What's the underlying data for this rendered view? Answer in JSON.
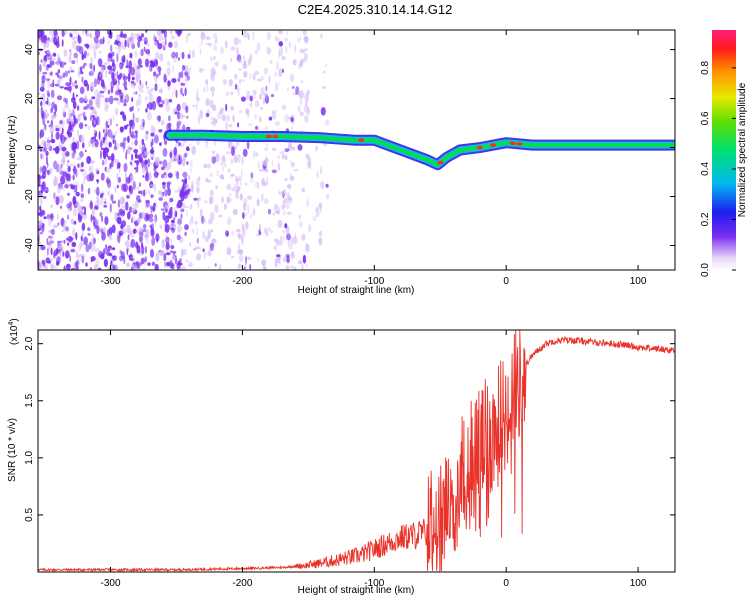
{
  "title": "C2E4.2025.310.14.14.G12",
  "colors": {
    "snr_line": "#e8322a",
    "track_core": "#00e040",
    "track_edge": "#2b21e0",
    "noise": "#7a2ff0",
    "noise_light": "#d2b8f5"
  },
  "chart_data": [
    {
      "type": "heatmap",
      "name": "spectrogram",
      "xlabel": "Height of straight line (km)",
      "ylabel": "Frequency (Hz)",
      "xlim": [
        -355,
        128
      ],
      "ylim": [
        -50,
        48
      ],
      "xticks": [
        -300,
        -200,
        -100,
        0,
        100
      ],
      "yticks": [
        -40,
        -20,
        0,
        20,
        40
      ],
      "xticklabels": [
        "-300",
        "-200",
        "-100",
        "0",
        "100"
      ],
      "yticklabels": [
        "-40",
        "-20",
        "0",
        "20",
        "40"
      ],
      "track": [
        {
          "x": -255,
          "y": 5
        },
        {
          "x": -230,
          "y": 5
        },
        {
          "x": -200,
          "y": 4.5
        },
        {
          "x": -170,
          "y": 4.5
        },
        {
          "x": -140,
          "y": 4
        },
        {
          "x": -115,
          "y": 3
        },
        {
          "x": -100,
          "y": 3
        },
        {
          "x": -90,
          "y": 1
        },
        {
          "x": -80,
          "y": -1
        },
        {
          "x": -70,
          "y": -3
        },
        {
          "x": -60,
          "y": -5
        },
        {
          "x": -52,
          "y": -7
        },
        {
          "x": -45,
          "y": -4
        },
        {
          "x": -35,
          "y": -1
        },
        {
          "x": -20,
          "y": 0
        },
        {
          "x": 0,
          "y": 2
        },
        {
          "x": 20,
          "y": 1
        },
        {
          "x": 50,
          "y": 1
        },
        {
          "x": 80,
          "y": 1
        },
        {
          "x": 110,
          "y": 1
        },
        {
          "x": 128,
          "y": 1
        }
      ],
      "colorbar": {
        "label": "Normalized spectral amplitude",
        "range": [
          0,
          0.95
        ],
        "ticks": [
          0.0,
          0.2,
          0.4,
          0.6,
          0.8
        ],
        "ticklabels": [
          "0.0",
          "0.2",
          "0.4",
          "0.6",
          "0.8"
        ]
      }
    },
    {
      "type": "line",
      "name": "snr",
      "xlabel": "Height of straight line (km)",
      "ylabel": "SNR (10 * v/v)",
      "scale_label": "(x10",
      "scale_exp": "4",
      "scale_close": ")",
      "xlim": [
        -355,
        128
      ],
      "ylim": [
        0,
        2.12
      ],
      "xticks": [
        -300,
        -200,
        -100,
        0,
        100
      ],
      "xticklabels": [
        "-300",
        "-200",
        "-100",
        "0",
        "100"
      ],
      "yticks": [
        0.5,
        1.0,
        1.5,
        2.0
      ],
      "yticklabels": [
        "0.5",
        "1.0",
        "1.5",
        "2.0"
      ],
      "series": [
        {
          "name": "SNR",
          "x": [
            -355,
            -300,
            -250,
            -200,
            -170,
            -150,
            -130,
            -110,
            -100,
            -90,
            -80,
            -70,
            -60,
            -50,
            -45,
            -40,
            -35,
            -30,
            -25,
            -20,
            -15,
            -10,
            -5,
            0,
            5,
            10,
            15,
            20,
            25,
            30,
            35,
            40,
            50,
            60,
            70,
            80,
            90,
            100,
            110,
            120,
            128
          ],
          "y": [
            0.02,
            0.02,
            0.02,
            0.03,
            0.04,
            0.06,
            0.1,
            0.15,
            0.2,
            0.25,
            0.3,
            0.32,
            0.35,
            0.4,
            0.5,
            0.7,
            0.85,
            0.9,
            1.0,
            1.1,
            1.15,
            1.2,
            1.3,
            1.4,
            1.55,
            1.7,
            1.82,
            1.9,
            1.95,
            2.0,
            2.02,
            2.03,
            2.03,
            2.02,
            2.01,
            2.0,
            1.99,
            1.97,
            1.96,
            1.95,
            1.94
          ]
        }
      ]
    }
  ]
}
